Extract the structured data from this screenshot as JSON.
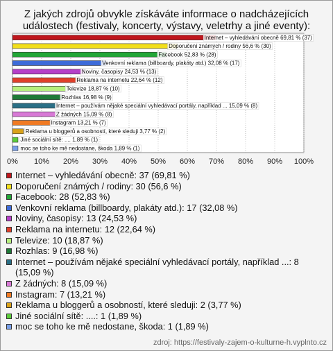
{
  "chart_data": {
    "type": "barh",
    "title": "Z jakých zdrojů obvykle získáváte informace o nadcházejících událostech (festivaly, koncerty, výstavy, veletrhy a jiné eventy):",
    "categories": [
      "Internet – vyhledávání obecně",
      "Doporučení známých / rodiny",
      "Facebook",
      "Venkovní reklama (billboardy, plakáty atd.)",
      "Noviny, časopisy",
      "Reklama na internetu",
      "Televize",
      "Rozhlas",
      "Internet – používám nějaké speciální vyhledávací portály, například ...",
      "Z žádných",
      "Instagram",
      "Reklama u bloggerů a osobností, které sleduji",
      "Jiné sociální sítě: ....",
      "moc se toho ke mě nedostane, škoda"
    ],
    "values": [
      69.81,
      56.6,
      52.83,
      32.08,
      24.53,
      22.64,
      18.87,
      16.98,
      15.09,
      15.09,
      13.21,
      3.77,
      1.89,
      1.89
    ],
    "value_labels": [
      "Internet – vyhledávání obecně 69,81 % (37)",
      "Doporučení známých / rodiny 56,6 % (30)",
      "Facebook 52,83 % (28)",
      "Venkovní reklama (billboardy, plakáty atd.) 32,08 % (17)",
      "Noviny, časopisy 24,53 % (13)",
      "Reklama na internetu 22,64 % (12)",
      "Televize 18,87 % (10)",
      "Rozhlas 16,98 % (9)",
      "Internet – používám nějaké speciální vyhledávací portály, například ... 15,09 % (8)",
      "Z žádných 15,09 % (8)",
      "Instagram 13,21 % (7)",
      "Reklama u bloggerů a osobností, které sleduji 3,77 % (2)",
      "Jiné sociální sítě: .... 1,89 % (1)",
      "moc se toho ke mě nedostane, škoda 1,89 % (1)"
    ],
    "legend_labels": [
      "Internet – vyhledávání obecně: 37 (69,81 %)",
      "Doporučení známých / rodiny: 30 (56,6 %)",
      "Facebook: 28 (52,83 %)",
      "Venkovní reklama (billboardy, plakáty atd.): 17 (32,08 %)",
      "Noviny, časopisy: 13 (24,53 %)",
      "Reklama na internetu: 12 (22,64 %)",
      "Televize: 10 (18,87 %)",
      "Rozhlas: 9 (16,98 %)",
      "Internet – používám nějaké speciální vyhledávací portály, například ...: 8 (15,09 %)",
      "Z žádných: 8 (15,09 %)",
      "Instagram: 7 (13,21 %)",
      "Reklama u bloggerů a osobností, které sleduji: 2 (3,77 %)",
      "Jiné sociální sítě: ....: 1 (1,89 %)",
      "moc se toho ke mě nedostane, škoda: 1 (1,89 %)"
    ],
    "colors": [
      "#c0161d",
      "#f2df1c",
      "#22a637",
      "#3d6bd8",
      "#b63fc9",
      "#e03f2a",
      "#b6ef7d",
      "#1f7a37",
      "#2a6f86",
      "#d879d6",
      "#f07a23",
      "#d9a21a",
      "#5ccc3a",
      "#7aa0e8"
    ],
    "xlim": [
      0,
      100
    ],
    "xticks": [
      {
        "value": 0,
        "label": "0%"
      },
      {
        "value": 10,
        "label": "10%"
      },
      {
        "value": 20,
        "label": "20%"
      },
      {
        "value": 30,
        "label": "30%"
      },
      {
        "value": 40,
        "label": "40%"
      },
      {
        "value": 50,
        "label": "50%"
      },
      {
        "value": 60,
        "label": "60%"
      },
      {
        "value": 70,
        "label": "70%"
      },
      {
        "value": 80,
        "label": "80%"
      },
      {
        "value": 90,
        "label": "90%"
      },
      {
        "value": 100,
        "label": "100%"
      }
    ],
    "grid": true,
    "source": "zdroj: https://festivaly-zajem-o-kulturne-h.vyplnto.cz"
  }
}
